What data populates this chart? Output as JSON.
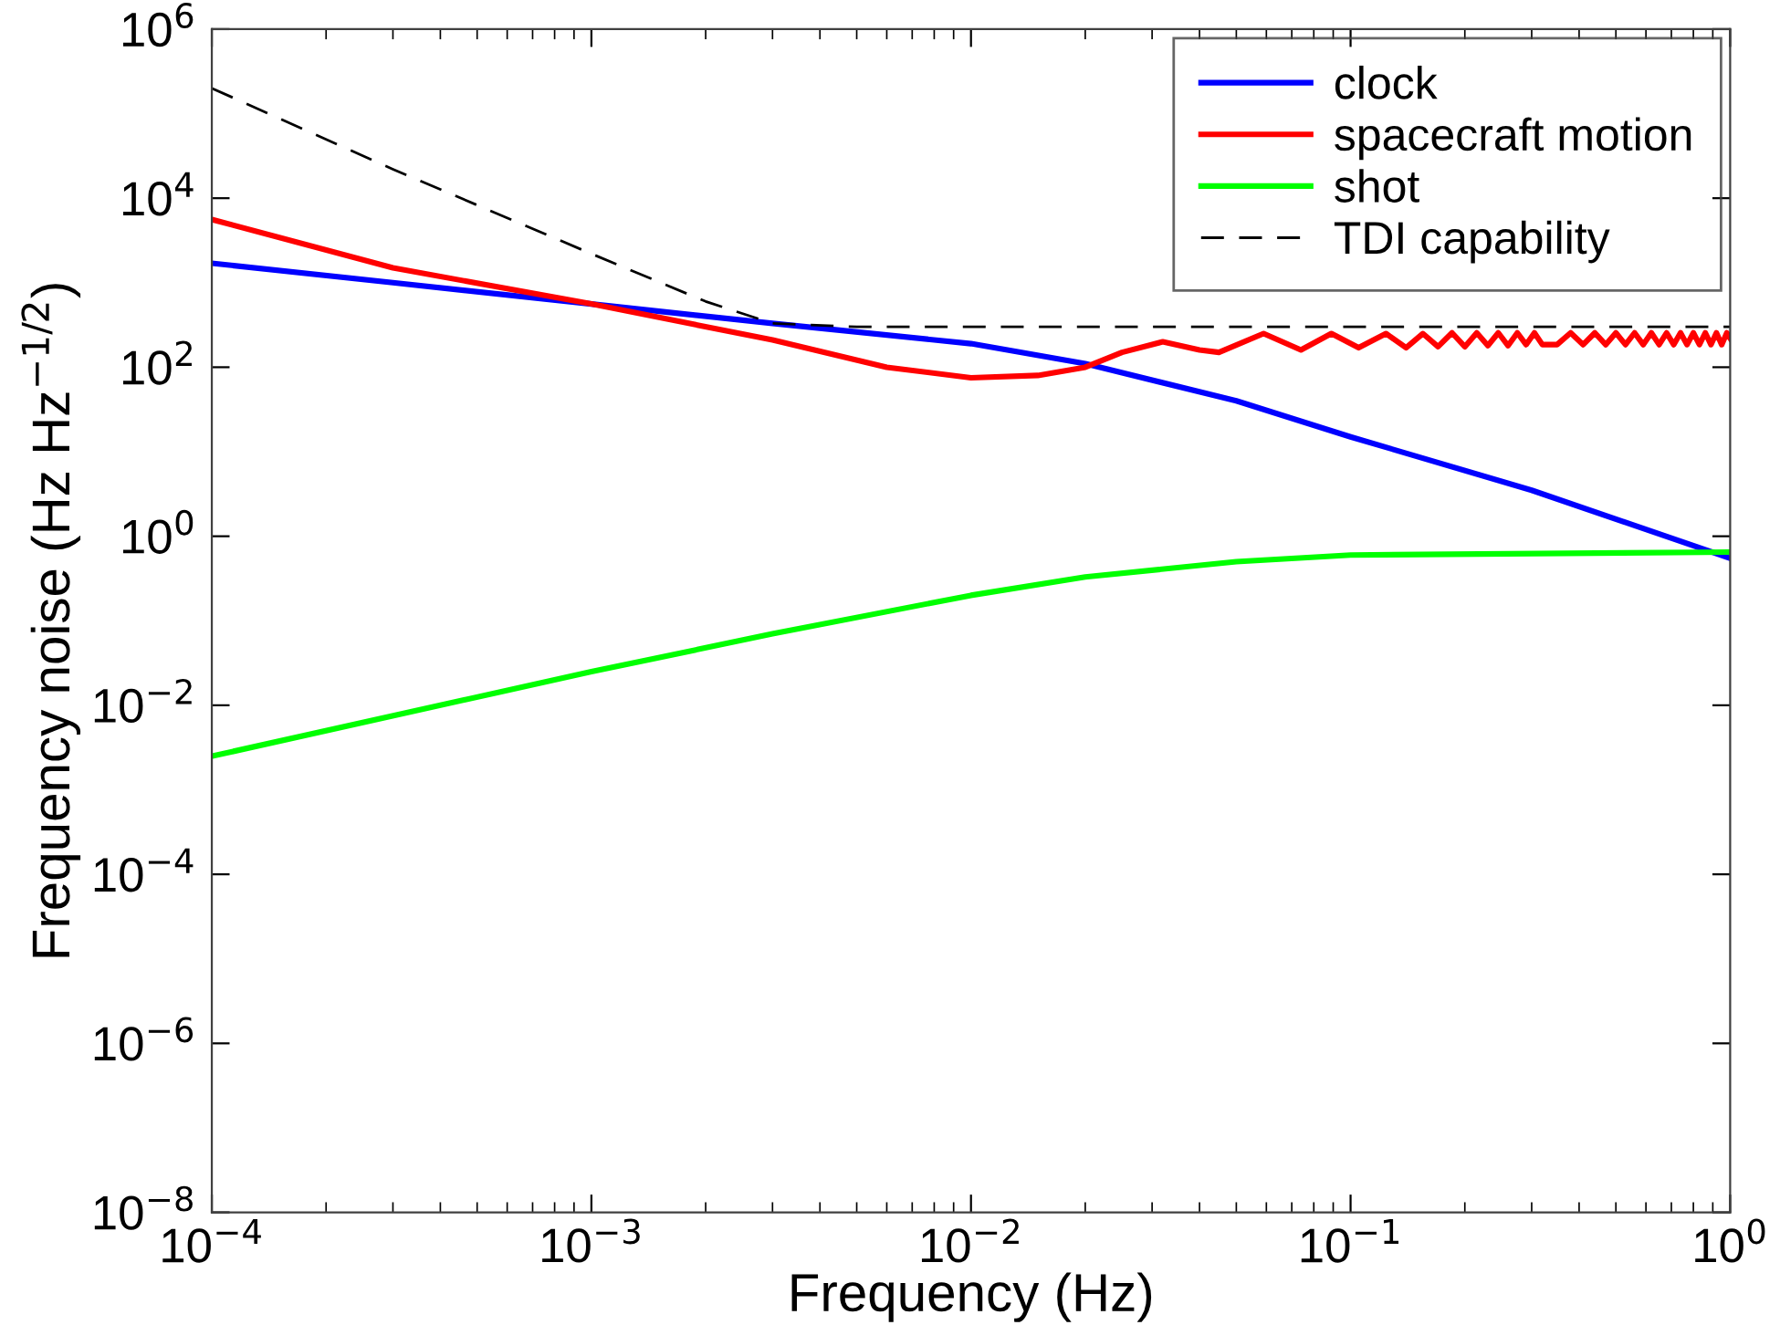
{
  "chart_data": {
    "type": "line",
    "xlabel": "Frequency (Hz)",
    "ylabel": "Frequency noise (Hz Hz$^{−1/2}$)",
    "log": "xy",
    "grid": false,
    "legend": "top right",
    "xlim": [
      0.0001,
      1
    ],
    "ylim": [
      1e-08,
      1000000.0
    ],
    "xticks": [
      {
        "value": 0.0001,
        "label": "10$^{−4}$"
      },
      {
        "value": 0.001,
        "label": "10$^{−3}$"
      },
      {
        "value": 0.01,
        "label": "10$^{−2}$"
      },
      {
        "value": 0.1,
        "label": "10$^{−1}$"
      },
      {
        "value": 1,
        "label": "10$^{0}$"
      }
    ],
    "yticks": [
      {
        "value": 1e-08,
        "label": "10$^{−8}$"
      },
      {
        "value": 1e-06,
        "label": "10$^{−6}$"
      },
      {
        "value": 0.0001,
        "label": "10$^{−4}$"
      },
      {
        "value": 0.01,
        "label": "10$^{−2}$"
      },
      {
        "value": 1,
        "label": "10$^{0}$"
      },
      {
        "value": 100,
        "label": "10$^{2}$"
      },
      {
        "value": 10000,
        "label": "10$^{4}$"
      },
      {
        "value": 1000000,
        "label": "10$^{6}$"
      }
    ],
    "series": [
      {
        "name": "clock",
        "color": "#0000ff",
        "x": [
          0.0001,
          0.0003,
          0.001,
          0.003,
          0.01,
          0.02,
          0.05,
          0.1,
          0.3,
          1
        ],
        "values": [
          1700,
          1000,
          560,
          330,
          190,
          110,
          40,
          15,
          3.5,
          0.55
        ]
      },
      {
        "name": "spacecraft motion",
        "color": "#ff0000",
        "x": [
          0.0001,
          0.0003,
          0.001,
          0.003,
          0.006,
          0.01,
          0.015,
          0.02,
          0.025,
          0.032,
          0.04,
          0.045,
          0.059,
          0.074,
          0.089,
          0.105,
          0.124,
          0.14,
          0.155,
          0.17,
          0.185,
          0.2,
          0.215,
          0.23,
          0.245,
          0.26,
          0.275,
          0.29,
          0.305,
          0.32,
          0.35,
          0.38,
          0.41,
          0.44,
          0.47,
          0.5,
          0.53,
          0.56,
          0.59,
          0.62,
          0.65,
          0.68,
          0.71,
          0.74,
          0.77,
          0.8,
          0.83,
          0.86,
          0.89,
          0.92,
          0.95,
          0.98,
          1
        ],
        "values": [
          5600,
          1500,
          560,
          210,
          100,
          75,
          80,
          100,
          150,
          200,
          160,
          150,
          250,
          160,
          250,
          170,
          250,
          170,
          250,
          175,
          255,
          175,
          255,
          180,
          255,
          180,
          255,
          185,
          255,
          185,
          185,
          255,
          185,
          255,
          185,
          255,
          185,
          255,
          185,
          255,
          185,
          255,
          185,
          255,
          185,
          255,
          185,
          255,
          185,
          255,
          185,
          255,
          220
        ]
      },
      {
        "name": "shot",
        "color": "#00ff00",
        "x": [
          0.0001,
          0.001,
          0.003,
          0.01,
          0.02,
          0.05,
          0.1,
          1
        ],
        "values": [
          0.0025,
          0.025,
          0.07,
          0.2,
          0.33,
          0.5,
          0.6,
          0.65
        ]
      },
      {
        "name": "TDI capability",
        "color": "#000000",
        "line_style": "dashed",
        "x": [
          0.0001,
          0.0003,
          0.001,
          0.002,
          0.003,
          0.005,
          1
        ],
        "values": [
          200000,
          22000,
          2200,
          600,
          330,
          300,
          300
        ]
      }
    ]
  }
}
